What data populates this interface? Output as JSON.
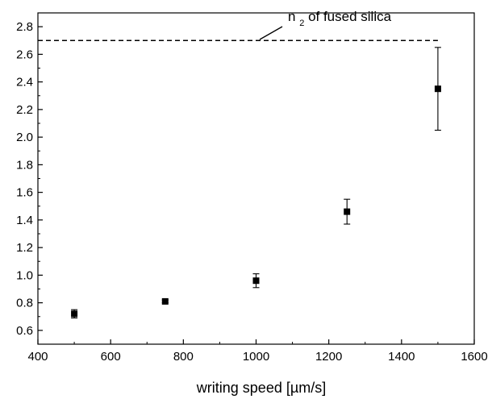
{
  "chart_data": {
    "type": "scatter",
    "xlabel": "writing speed [µm/s]",
    "ylabel": "",
    "xlim": [
      400,
      1600
    ],
    "ylim": [
      0.5,
      2.9
    ],
    "x_ticks": [
      "400",
      "600",
      "800",
      "1000",
      "1200",
      "1400",
      "1600"
    ],
    "y_ticks": [
      "0.6",
      "0.8",
      "1.0",
      "1.2",
      "1.4",
      "1.6",
      "1.8",
      "2.0",
      "2.2",
      "2.4",
      "2.6",
      "2.8"
    ],
    "series": [
      {
        "points": [
          {
            "x": 500,
            "y": 0.72,
            "err_low": 0.69,
            "err_high": 0.75
          },
          {
            "x": 750,
            "y": 0.81,
            "err_low": 0.8,
            "err_high": 0.82
          },
          {
            "x": 1000,
            "y": 0.96,
            "err_low": 0.91,
            "err_high": 1.01
          },
          {
            "x": 1250,
            "y": 1.46,
            "err_low": 1.37,
            "err_high": 1.55
          },
          {
            "x": 1500,
            "y": 2.35,
            "err_low": 2.05,
            "err_high": 2.65
          }
        ]
      }
    ],
    "reference_line": {
      "y": 2.7,
      "style": "dashed"
    },
    "annotation": {
      "main": "n",
      "subscript": "2",
      "rest": " of fused silica"
    },
    "grid": false,
    "legend": "none",
    "marker": "filled-square",
    "color": "#000000"
  }
}
